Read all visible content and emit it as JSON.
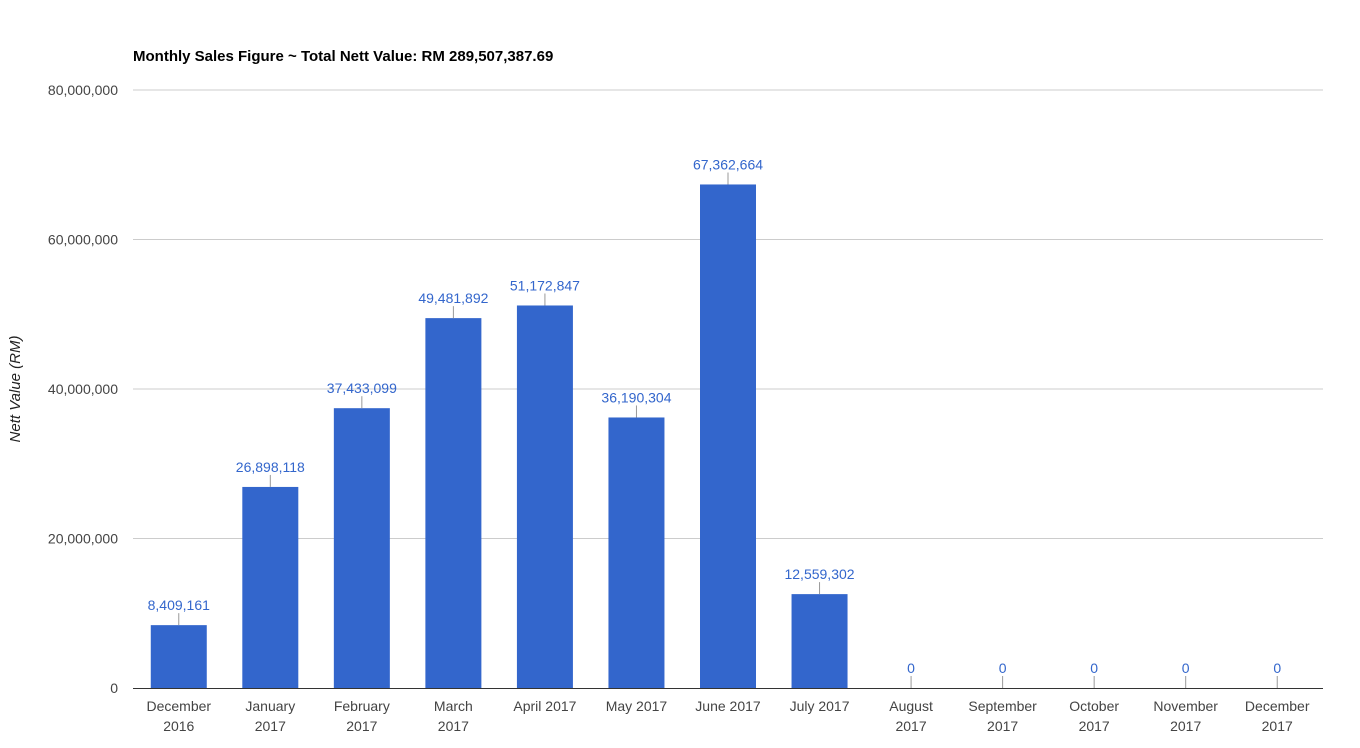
{
  "chart_data": {
    "type": "bar",
    "title": "Monthly Sales Figure ~ Total Nett Value: RM 289,507,387.69",
    "xlabel": "",
    "ylabel": "Nett Value (RM)",
    "ylim": [
      0,
      80000000
    ],
    "yticks": [
      0,
      20000000,
      40000000,
      60000000,
      80000000
    ],
    "ytick_labels": [
      "0",
      "20,000,000",
      "40,000,000",
      "60,000,000",
      "80,000,000"
    ],
    "grid": true,
    "categories": [
      [
        "December",
        "2016"
      ],
      [
        "January",
        "2017"
      ],
      [
        "February",
        "2017"
      ],
      [
        "March",
        "2017"
      ],
      [
        "April 2017"
      ],
      [
        "May 2017"
      ],
      [
        "June 2017"
      ],
      [
        "July 2017"
      ],
      [
        "August",
        "2017"
      ],
      [
        "September",
        "2017"
      ],
      [
        "October",
        "2017"
      ],
      [
        "November",
        "2017"
      ],
      [
        "December",
        "2017"
      ]
    ],
    "values": [
      8409161,
      26898118,
      37433099,
      49481892,
      51172847,
      36190304,
      67362664,
      12559302,
      0,
      0,
      0,
      0,
      0
    ],
    "value_labels": [
      "8,409,161",
      "26,898,118",
      "37,433,099",
      "49,481,892",
      "51,172,847",
      "36,190,304",
      "67,362,664",
      "12,559,302",
      "0",
      "0",
      "0",
      "0",
      "0"
    ],
    "colors": {
      "bar": "#3366cc",
      "data_label": "#3366cc"
    }
  }
}
